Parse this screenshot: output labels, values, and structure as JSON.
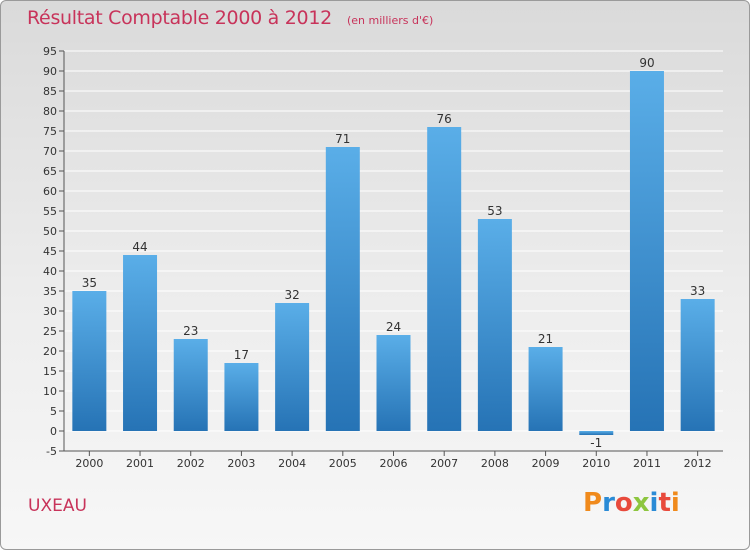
{
  "colors": {
    "title": "#c8335a",
    "bar_top": "#5aaee8",
    "bar_bottom": "#2673b5",
    "grid": "#ffffff",
    "axis": "#555555",
    "logo": [
      "#f08a1c",
      "#2a8bd6",
      "#e84a3c",
      "#8dc63f",
      "#2a8bd6",
      "#e84a3c"
    ]
  },
  "location": "UXEAU",
  "logo_text": "Proxiti",
  "chart_data": {
    "type": "bar",
    "title": "Résultat Comptable 2000 à 2012",
    "subtitle": "(en milliers d'€)",
    "xlabel": "",
    "ylabel": "",
    "categories": [
      "2000",
      "2001",
      "2002",
      "2003",
      "2004",
      "2005",
      "2006",
      "2007",
      "2008",
      "2009",
      "2010",
      "2011",
      "2012"
    ],
    "values": [
      35,
      44,
      23,
      17,
      32,
      71,
      24,
      76,
      53,
      21,
      -1,
      90,
      33
    ],
    "ylim": [
      -5,
      95
    ],
    "yticks": [
      -5,
      0,
      5,
      10,
      15,
      20,
      25,
      30,
      35,
      40,
      45,
      50,
      55,
      60,
      65,
      70,
      75,
      80,
      85,
      90,
      95
    ],
    "grid": true,
    "legend": "none"
  }
}
